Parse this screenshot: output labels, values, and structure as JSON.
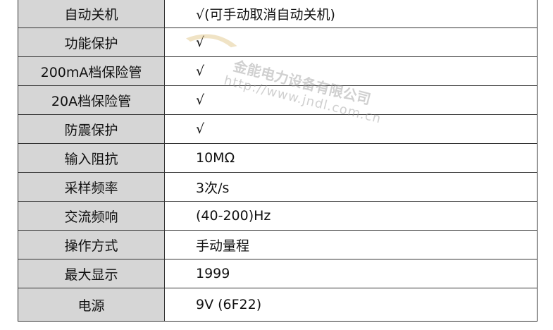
{
  "rows": [
    {
      "label": "自动关机",
      "value": "√(可手动取消自动关机)"
    },
    {
      "label": "功能保护",
      "value": "√"
    },
    {
      "label": "200mA档保险管",
      "value": "√"
    },
    {
      "label": "20A档保险管",
      "value": "√"
    },
    {
      "label": "防震保护",
      "value": "√"
    },
    {
      "label": "输入阻抗",
      "value": "10MΩ"
    },
    {
      "label": "采样频率",
      "value": "3次/s"
    },
    {
      "label": "交流频响",
      "value": "(40-200)Hz"
    },
    {
      "label": "操作方式",
      "value": "手动量程"
    },
    {
      "label": "最大显示",
      "value": "1999"
    },
    {
      "label": "电源",
      "value": "9V (6F22)"
    }
  ],
  "watermark": {
    "company": "金能电力设备有限公司",
    "url": "http://www.jndl.com.cn",
    "logo_text": "金能电力"
  }
}
